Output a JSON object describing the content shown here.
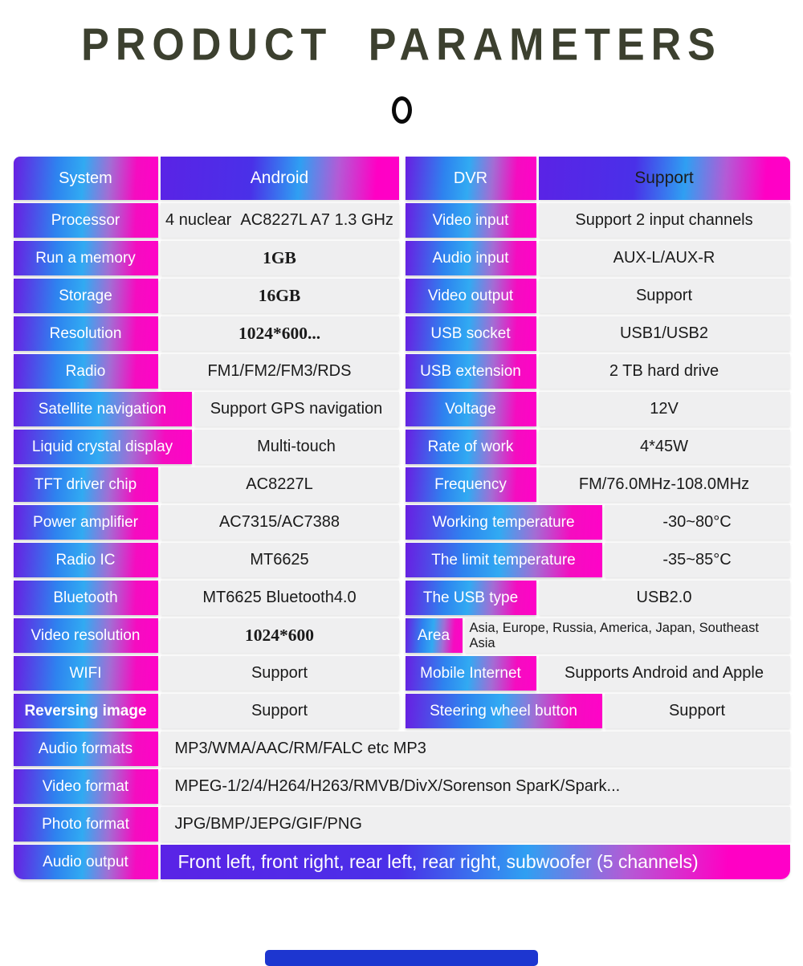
{
  "title": "PRODUCT PARAMETERS",
  "colors": {
    "gradient_violet": "#681fe2",
    "gradient_blue": "#2e9ef2",
    "gradient_magenta": "#ff00c4",
    "value_cell_bg": "#efeff0",
    "title_text": "#3c402f",
    "label_text": "#ffffff",
    "value_text": "#1a1a1a",
    "bottom_bar": "#1d36d0"
  },
  "left_rows": [
    {
      "label": "System",
      "value": "Android",
      "type": "header"
    },
    {
      "label": "Processor",
      "value": "4 nuclear  AC8227L A7 1.3 GHz"
    },
    {
      "label": "Run a memory",
      "value": "1GB",
      "serif": true
    },
    {
      "label": "Storage",
      "value": "16GB",
      "serif": true
    },
    {
      "label": "Resolution",
      "value": "1024*600...",
      "serif": true
    },
    {
      "label": "Radio",
      "value": "FM1/FM2/FM3/RDS"
    },
    {
      "label": "Satellite navigation",
      "value": "Support GPS navigation",
      "wide": true
    },
    {
      "label": "Liquid crystal display",
      "value": "Multi-touch",
      "wide": true
    },
    {
      "label": "TFT driver chip",
      "value": "AC8227L"
    },
    {
      "label": "Power amplifier",
      "value": "AC7315/AC7388"
    },
    {
      "label": "Radio IC",
      "value": "MT6625"
    },
    {
      "label": "Bluetooth",
      "value": "MT6625 Bluetooth4.0"
    },
    {
      "label": "Video resolution",
      "value": "1024*600",
      "serif": true
    },
    {
      "label": "WIFI",
      "value": "Support"
    },
    {
      "label": "Reversing image",
      "value": "Support",
      "labelBold": true
    }
  ],
  "right_rows": [
    {
      "label": "DVR",
      "value": "Support",
      "type": "header"
    },
    {
      "label": "Video input",
      "value": "Support 2 input channels"
    },
    {
      "label": "Audio input",
      "value": "AUX-L/AUX-R"
    },
    {
      "label": "Video output",
      "value": "Support"
    },
    {
      "label": "USB socket",
      "value": "USB1/USB2"
    },
    {
      "label": "USB extension",
      "value": "2 TB hard drive"
    },
    {
      "label": "Voltage",
      "value": "12V"
    },
    {
      "label": "Rate of work",
      "value": "4*45W"
    },
    {
      "label": "Frequency",
      "value": "FM/76.0MHz-108.0MHz"
    },
    {
      "label": "Working temperature",
      "value": "-30~80°C",
      "wide": true
    },
    {
      "label": "The limit temperature",
      "value": "-35~85°C",
      "wide": true
    },
    {
      "label": "The USB type",
      "value": "USB2.0"
    },
    {
      "label": "Area",
      "value": "Asia, Europe, Russia, America, Japan, Southeast Asia",
      "narrow": true,
      "smallValue": true
    },
    {
      "label": "Mobile Internet",
      "value": "Supports Android and Apple"
    },
    {
      "label": "Steering wheel button",
      "value": "Support",
      "wide": true
    }
  ],
  "bottom_rows": [
    {
      "label": "Audio formats",
      "value": "MP3/WMA/AAC/RM/FALC etc MP3"
    },
    {
      "label": "Video format",
      "value": "MPEG-1/2/4/H264/H263/RMVB/DivX/Sorenson SparK/Spark..."
    },
    {
      "label": "Photo format",
      "value": "JPG/BMP/JEPG/GIF/PNG"
    },
    {
      "label": "Audio output",
      "value": "Front left, front right, rear left, rear right, subwoofer (5 channels)",
      "type": "gradient"
    }
  ]
}
